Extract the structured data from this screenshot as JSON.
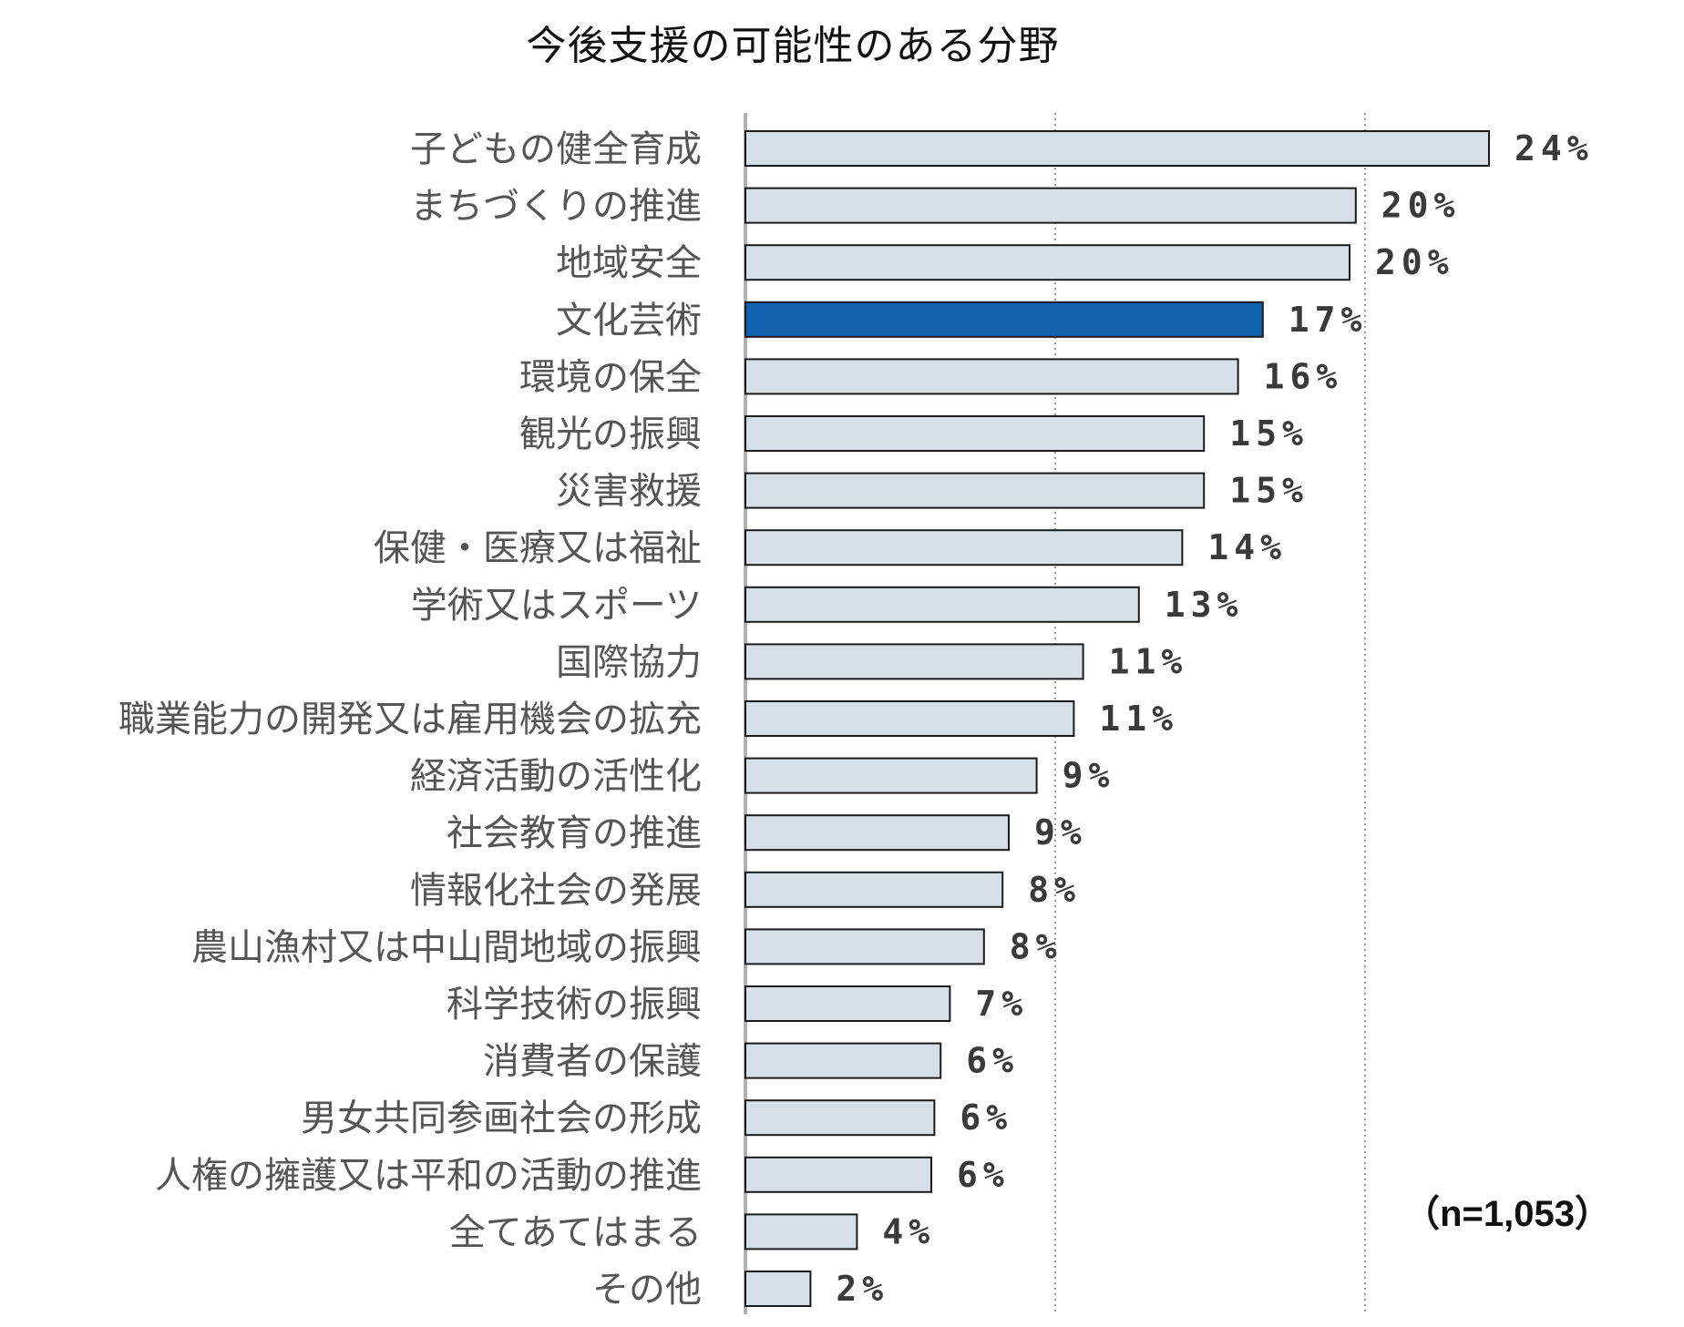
{
  "chart_data": {
    "type": "bar",
    "orientation": "horizontal",
    "title": "今後支援の可能性のある分野",
    "categories": [
      "子どもの健全育成",
      "まちづくりの推進",
      "地域安全",
      "文化芸術",
      "環境の保全",
      "観光の振興",
      "災害救援",
      "保健・医療又は福祉",
      "学術又はスポーツ",
      "国際協力",
      "職業能力の開発又は雇用機会の拡充",
      "経済活動の活性化",
      "社会教育の推進",
      "情報化社会の発展",
      "農山漁村又は中山間地域の振興",
      "科学技術の振興",
      "消費者の保護",
      "男女共同参画社会の形成",
      "人権の擁護又は平和の活動の推進",
      "全てあてはまる",
      "その他"
    ],
    "values": [
      24.0,
      19.7,
      19.5,
      16.7,
      15.9,
      14.8,
      14.8,
      14.1,
      12.7,
      10.9,
      10.6,
      9.4,
      8.5,
      8.3,
      7.7,
      6.6,
      6.3,
      6.1,
      6.0,
      3.6,
      2.1
    ],
    "value_labels": [
      "24%",
      "20%",
      "20%",
      "17%",
      "16%",
      "15%",
      "15%",
      "14%",
      "13%",
      "11%",
      "11%",
      "9%",
      "9%",
      "8%",
      "8%",
      "7%",
      "6%",
      "6%",
      "6%",
      "4%",
      "2%"
    ],
    "highlight_category": "文化芸術",
    "xlim": [
      0,
      30
    ],
    "gridlines_at": [
      10,
      20
    ],
    "grid": true,
    "note": "（n=1,053）",
    "colors": {
      "bar_fill": "#d6dfe8",
      "bar_highlight": "#1163ad",
      "bar_stroke": "#1a1a1a",
      "gridline": "#9a9a9a",
      "axis": "#b0b0b0"
    }
  }
}
